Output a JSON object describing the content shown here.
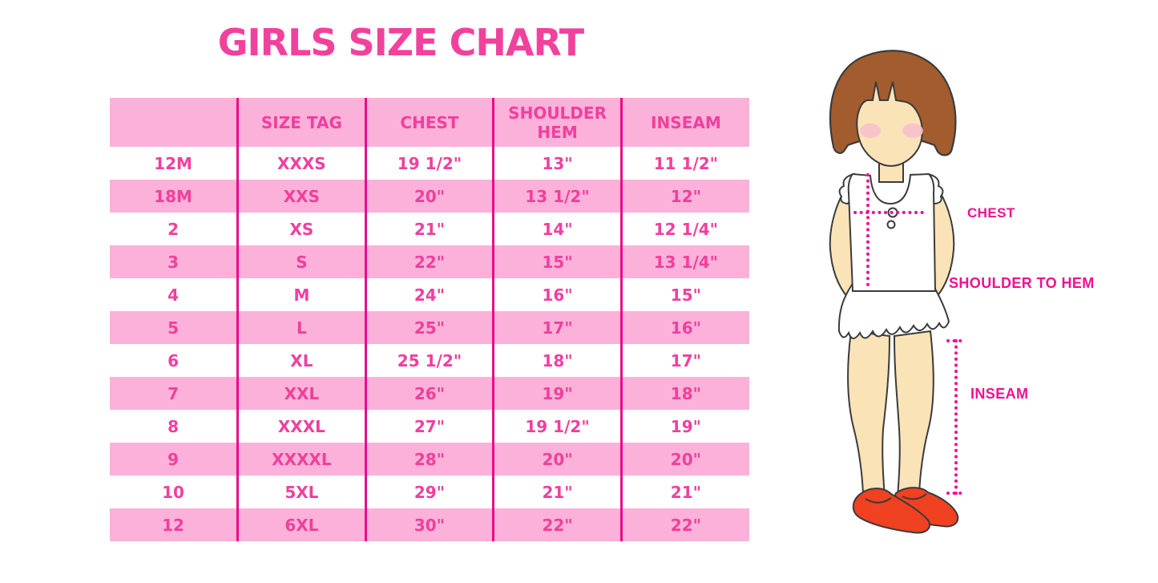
{
  "title": "GIRLS SIZE CHART",
  "colors": {
    "title_pink": "#F2419D",
    "cell_text_pink": "#F03F9D",
    "row_light_pink": "#FBB1D9",
    "column_separator_magenta": "#E60C8A",
    "measure_label_magenta": "#F01090",
    "skin": "#FBE3B8",
    "hair_brown": "#A25C2D",
    "shoe_red": "#F04120"
  },
  "chart_data": {
    "type": "table",
    "title": "GIRLS SIZE CHART",
    "columns": [
      "",
      "SIZE TAG",
      "CHEST",
      "SHOULDER HEM",
      "INSEAM"
    ],
    "rows": [
      [
        "12M",
        "XXXS",
        "19 1/2\"",
        "13\"",
        "11 1/2\""
      ],
      [
        "18M",
        "XXS",
        "20\"",
        "13 1/2\"",
        "12\""
      ],
      [
        "2",
        "XS",
        "21\"",
        "14\"",
        "12 1/4\""
      ],
      [
        "3",
        "S",
        "22\"",
        "15\"",
        "13 1/4\""
      ],
      [
        "4",
        "M",
        "24\"",
        "16\"",
        "15\""
      ],
      [
        "5",
        "L",
        "25\"",
        "17\"",
        "16\""
      ],
      [
        "6",
        "XL",
        "25 1/2\"",
        "18\"",
        "17\""
      ],
      [
        "7",
        "XXL",
        "26\"",
        "19\"",
        "18\""
      ],
      [
        "8",
        "XXXL",
        "27\"",
        "19 1/2\"",
        "19\""
      ],
      [
        "9",
        "XXXXL",
        "28\"",
        "20\"",
        "20\""
      ],
      [
        "10",
        "5XL",
        "29\"",
        "21\"",
        "21\""
      ],
      [
        "12",
        "6XL",
        "30\"",
        "22\"",
        "22\""
      ]
    ],
    "layout_hints": {
      "row_striping": [
        "white",
        "pink"
      ],
      "header_background": "pink",
      "grid": "vertical-separators-only"
    }
  },
  "figure": {
    "description": "illustrated girl showing measurement points",
    "labels": {
      "chest": "CHEST",
      "shoulder_to_hem": "SHOULDER TO HEM",
      "inseam": "INSEAM"
    }
  }
}
